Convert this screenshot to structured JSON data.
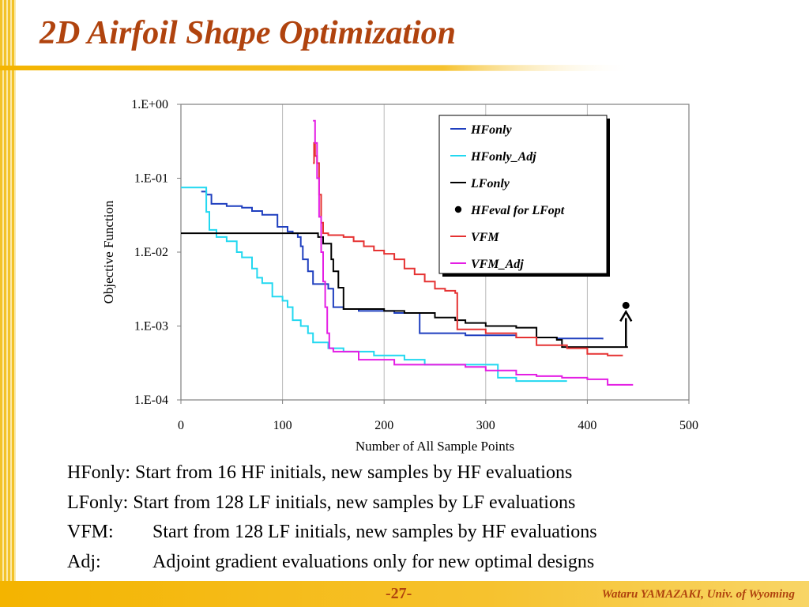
{
  "slide": {
    "title": "2D Airfoil Shape Optimization",
    "descriptions": [
      {
        "label": "HFonly:",
        "text": "Start from 16 HF initials, new samples by HF evaluations"
      },
      {
        "label": "LFonly:",
        "text": "Start from 128 LF initials, new samples by LF evaluations"
      },
      {
        "label": "VFM:",
        "text": "Start from 128 LF initials, new samples by HF evaluations"
      },
      {
        "label": "Adj:",
        "text": "Adjoint gradient evaluations only for new optimal designs"
      }
    ],
    "page_number": "-27-",
    "author": "Wataru YAMAZAKI, Univ. of Wyoming"
  },
  "colors": {
    "title": "#b0430e",
    "accent": "#f4b400"
  },
  "chart_data": {
    "type": "line",
    "title": "",
    "xlabel": "Number of All Sample Points",
    "ylabel": "Objective Function",
    "xlim": [
      0,
      500
    ],
    "ylim": [
      0.0001,
      1
    ],
    "yscale": "log",
    "xticks": [
      "0",
      "100",
      "200",
      "300",
      "400",
      "500"
    ],
    "yticks": [
      "1.E+00",
      "1.E-01",
      "1.E-02",
      "1.E-03",
      "1.E-04"
    ],
    "grid": "vertical",
    "legend_position": "top-right",
    "series": [
      {
        "name": "HFonly",
        "color": "#1f3fbf",
        "marker": "line",
        "points": [
          [
            20,
            0.066
          ],
          [
            25,
            0.06
          ],
          [
            30,
            0.045
          ],
          [
            45,
            0.042
          ],
          [
            60,
            0.04
          ],
          [
            70,
            0.036
          ],
          [
            80,
            0.032
          ],
          [
            95,
            0.022
          ],
          [
            105,
            0.019
          ],
          [
            110,
            0.018
          ],
          [
            115,
            0.016
          ],
          [
            118,
            0.012
          ],
          [
            120,
            0.008
          ],
          [
            125,
            0.0055
          ],
          [
            130,
            0.0037
          ],
          [
            140,
            0.0037
          ],
          [
            145,
            0.0032
          ],
          [
            150,
            0.0018
          ],
          [
            160,
            0.0017
          ],
          [
            175,
            0.0016
          ],
          [
            190,
            0.0016
          ],
          [
            210,
            0.0015
          ],
          [
            230,
            0.0015
          ],
          [
            235,
            0.0008
          ],
          [
            260,
            0.0008
          ],
          [
            275,
            0.0008
          ],
          [
            280,
            0.00075
          ],
          [
            300,
            0.00075
          ],
          [
            330,
            0.0007
          ],
          [
            355,
            0.0007
          ],
          [
            370,
            0.00068
          ],
          [
            415,
            0.00066
          ]
        ]
      },
      {
        "name": "HFonly_Adj",
        "color": "#22d8f0",
        "marker": "line",
        "points": [
          [
            0,
            0.075
          ],
          [
            20,
            0.075
          ],
          [
            25,
            0.035
          ],
          [
            28,
            0.02
          ],
          [
            35,
            0.016
          ],
          [
            45,
            0.014
          ],
          [
            55,
            0.01
          ],
          [
            60,
            0.0085
          ],
          [
            70,
            0.006
          ],
          [
            75,
            0.0045
          ],
          [
            80,
            0.0038
          ],
          [
            90,
            0.0025
          ],
          [
            100,
            0.0022
          ],
          [
            105,
            0.0018
          ],
          [
            110,
            0.0012
          ],
          [
            118,
            0.001
          ],
          [
            125,
            0.0008
          ],
          [
            130,
            0.0006
          ],
          [
            145,
            0.0005
          ],
          [
            160,
            0.00045
          ],
          [
            190,
            0.0004
          ],
          [
            220,
            0.00035
          ],
          [
            240,
            0.0003
          ],
          [
            260,
            0.0003
          ],
          [
            280,
            0.0003
          ],
          [
            300,
            0.0003
          ],
          [
            310,
            0.0003
          ],
          [
            312,
            0.0002
          ],
          [
            330,
            0.00018
          ],
          [
            355,
            0.00018
          ],
          [
            370,
            0.00018
          ],
          [
            380,
            0.00018
          ]
        ]
      },
      {
        "name": "LFonly",
        "color": "#000000",
        "marker": "line",
        "points": [
          [
            0,
            0.018
          ],
          [
            130,
            0.018
          ],
          [
            135,
            0.016
          ],
          [
            140,
            0.013
          ],
          [
            145,
            0.013
          ],
          [
            148,
            0.008
          ],
          [
            150,
            0.0055
          ],
          [
            155,
            0.0033
          ],
          [
            160,
            0.0017
          ],
          [
            180,
            0.0017
          ],
          [
            200,
            0.0016
          ],
          [
            220,
            0.0015
          ],
          [
            230,
            0.0015
          ],
          [
            250,
            0.0013
          ],
          [
            270,
            0.0012
          ],
          [
            280,
            0.0011
          ],
          [
            300,
            0.001
          ],
          [
            330,
            0.00095
          ],
          [
            345,
            0.00095
          ],
          [
            350,
            0.0007
          ],
          [
            370,
            0.00065
          ],
          [
            375,
            0.00052
          ],
          [
            400,
            0.00052
          ],
          [
            440,
            0.00052
          ]
        ]
      },
      {
        "name": "HFeval for LFopt",
        "color": "#000000",
        "marker": "dot",
        "points": [
          [
            438,
            0.0019
          ]
        ]
      },
      {
        "name": "VFM",
        "color": "#e53232",
        "marker": "line",
        "points": [
          [
            130,
            0.16
          ],
          [
            131,
            0.3
          ],
          [
            132,
            0.2
          ],
          [
            134,
            0.16
          ],
          [
            136,
            0.06
          ],
          [
            138,
            0.025
          ],
          [
            140,
            0.018
          ],
          [
            145,
            0.017
          ],
          [
            150,
            0.017
          ],
          [
            160,
            0.016
          ],
          [
            170,
            0.014
          ],
          [
            180,
            0.012
          ],
          [
            190,
            0.0105
          ],
          [
            200,
            0.0095
          ],
          [
            210,
            0.008
          ],
          [
            220,
            0.006
          ],
          [
            230,
            0.005
          ],
          [
            240,
            0.004
          ],
          [
            250,
            0.0032
          ],
          [
            260,
            0.003
          ],
          [
            270,
            0.0028
          ],
          [
            272,
            0.0009
          ],
          [
            290,
            0.0009
          ],
          [
            300,
            0.0008
          ],
          [
            320,
            0.0008
          ],
          [
            330,
            0.0007
          ],
          [
            350,
            0.00055
          ],
          [
            375,
            0.00055
          ],
          [
            380,
            0.0005
          ],
          [
            400,
            0.00042
          ],
          [
            420,
            0.0004
          ],
          [
            435,
            0.0004
          ]
        ]
      },
      {
        "name": "VFM_Adj",
        "color": "#e41ee4",
        "marker": "line",
        "points": [
          [
            130,
            0.6
          ],
          [
            132,
            0.3
          ],
          [
            134,
            0.1
          ],
          [
            136,
            0.03
          ],
          [
            138,
            0.01
          ],
          [
            140,
            0.004
          ],
          [
            142,
            0.0018
          ],
          [
            144,
            0.0008
          ],
          [
            146,
            0.0005
          ],
          [
            150,
            0.00045
          ],
          [
            160,
            0.00045
          ],
          [
            175,
            0.00035
          ],
          [
            200,
            0.00035
          ],
          [
            210,
            0.0003
          ],
          [
            240,
            0.0003
          ],
          [
            280,
            0.00028
          ],
          [
            300,
            0.00025
          ],
          [
            330,
            0.00022
          ],
          [
            350,
            0.00021
          ],
          [
            375,
            0.0002
          ],
          [
            400,
            0.00019
          ],
          [
            415,
            0.00019
          ],
          [
            420,
            0.00016
          ],
          [
            445,
            0.00016
          ]
        ]
      }
    ]
  }
}
